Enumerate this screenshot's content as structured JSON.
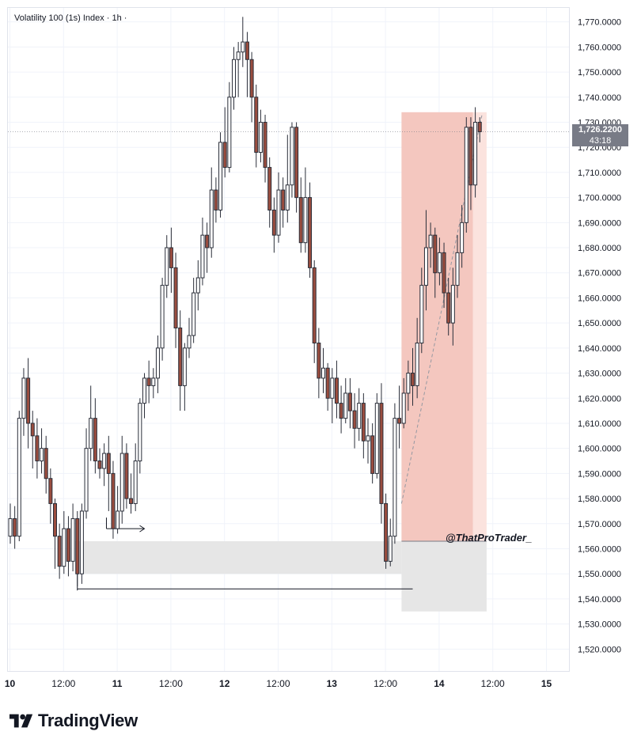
{
  "chart_title": "Volatility 100 (1s) Index · 1h ·",
  "current_price_label": "1,726.2200",
  "countdown_label": "43:18",
  "watermark": "@ThatProTrader_",
  "logo_text": "TradingView",
  "colors": {
    "bull": "#ffffff",
    "bear": "#9a4d3f",
    "wick": "#2a2e39",
    "short_zone": "#f4c7bf",
    "short_zone_light": "#fbe3de",
    "gray_zone": "#e6e6e6",
    "price_tag": "#787b86"
  },
  "chart_data": {
    "type": "candlestick",
    "title": "Volatility 100 (1s) Index · 1h ·",
    "y_ticks": [
      "1,520.0000",
      "1,530.0000",
      "1,540.0000",
      "1,550.0000",
      "1,560.0000",
      "1,570.0000",
      "1,580.0000",
      "1,590.0000",
      "1,600.0000",
      "1,610.0000",
      "1,620.0000",
      "1,630.0000",
      "1,640.0000",
      "1,650.0000",
      "1,660.0000",
      "1,670.0000",
      "1,680.0000",
      "1,690.0000",
      "1,700.0000",
      "1,710.0000",
      "1,720.0000",
      "1,730.0000",
      "1,740.0000",
      "1,750.0000",
      "1,760.0000",
      "1,770.0000"
    ],
    "ylim": [
      1516,
      1774
    ],
    "x_ticks": [
      "10",
      "12:00",
      "11",
      "12:00",
      "12",
      "12:00",
      "13",
      "12:00",
      "14",
      "12:00",
      "15"
    ],
    "xlim": [
      0,
      106
    ],
    "x_tick_positions": [
      0,
      12,
      24,
      36,
      48,
      60,
      72,
      84,
      96,
      108,
      120
    ],
    "grid": true,
    "current_price": 1726.22,
    "candles": [
      [
        1565,
        1572,
        1562,
        1578
      ],
      [
        1572,
        1565,
        1560,
        1577
      ],
      [
        1565,
        1612,
        1563,
        1615
      ],
      [
        1612,
        1628,
        1605,
        1632
      ],
      [
        1628,
        1610,
        1600,
        1636
      ],
      [
        1610,
        1605,
        1592,
        1615
      ],
      [
        1605,
        1595,
        1588,
        1612
      ],
      [
        1595,
        1600,
        1590,
        1608
      ],
      [
        1600,
        1588,
        1582,
        1605
      ],
      [
        1588,
        1578,
        1570,
        1592
      ],
      [
        1578,
        1565,
        1552,
        1580
      ],
      [
        1565,
        1553,
        1548,
        1570
      ],
      [
        1553,
        1568,
        1550,
        1575
      ],
      [
        1568,
        1555,
        1549,
        1573
      ],
      [
        1555,
        1572,
        1551,
        1578
      ],
      [
        1572,
        1550,
        1545,
        1575
      ],
      [
        1550,
        1575,
        1546,
        1578
      ],
      [
        1575,
        1600,
        1572,
        1608
      ],
      [
        1600,
        1612,
        1595,
        1625
      ],
      [
        1612,
        1595,
        1590,
        1620
      ],
      [
        1595,
        1592,
        1588,
        1600
      ],
      [
        1592,
        1598,
        1585,
        1602
      ],
      [
        1598,
        1590,
        1575,
        1605
      ],
      [
        1590,
        1568,
        1564,
        1595
      ],
      [
        1568,
        1575,
        1566,
        1585
      ],
      [
        1575,
        1598,
        1570,
        1605
      ],
      [
        1598,
        1580,
        1576,
        1602
      ],
      [
        1580,
        1578,
        1574,
        1590
      ],
      [
        1578,
        1595,
        1575,
        1602
      ],
      [
        1595,
        1618,
        1590,
        1620
      ],
      [
        1618,
        1628,
        1612,
        1630
      ],
      [
        1628,
        1625,
        1618,
        1635
      ],
      [
        1625,
        1628,
        1620,
        1632
      ],
      [
        1628,
        1640,
        1622,
        1645
      ],
      [
        1640,
        1665,
        1635,
        1668
      ],
      [
        1665,
        1680,
        1660,
        1685
      ],
      [
        1680,
        1672,
        1662,
        1688
      ],
      [
        1672,
        1648,
        1640,
        1678
      ],
      [
        1648,
        1625,
        1615,
        1655
      ],
      [
        1625,
        1640,
        1615,
        1642
      ],
      [
        1640,
        1645,
        1636,
        1652
      ],
      [
        1645,
        1662,
        1642,
        1668
      ],
      [
        1662,
        1668,
        1655,
        1675
      ],
      [
        1668,
        1685,
        1665,
        1692
      ],
      [
        1685,
        1680,
        1670,
        1690
      ],
      [
        1680,
        1703,
        1676,
        1712
      ],
      [
        1703,
        1695,
        1690,
        1708
      ],
      [
        1695,
        1722,
        1692,
        1726
      ],
      [
        1722,
        1712,
        1708,
        1736
      ],
      [
        1712,
        1740,
        1710,
        1746
      ],
      [
        1740,
        1755,
        1735,
        1760
      ],
      [
        1755,
        1758,
        1740,
        1762
      ],
      [
        1758,
        1762,
        1752,
        1772
      ],
      [
        1762,
        1755,
        1740,
        1766
      ],
      [
        1755,
        1740,
        1730,
        1758
      ],
      [
        1740,
        1718,
        1712,
        1745
      ],
      [
        1718,
        1730,
        1714,
        1735
      ],
      [
        1730,
        1712,
        1706,
        1733
      ],
      [
        1712,
        1695,
        1688,
        1716
      ],
      [
        1695,
        1685,
        1678,
        1700
      ],
      [
        1685,
        1703,
        1682,
        1710
      ],
      [
        1703,
        1695,
        1688,
        1708
      ],
      [
        1695,
        1705,
        1690,
        1725
      ],
      [
        1705,
        1728,
        1700,
        1730
      ],
      [
        1728,
        1700,
        1694,
        1730
      ],
      [
        1700,
        1682,
        1678,
        1708
      ],
      [
        1682,
        1700,
        1678,
        1712
      ],
      [
        1700,
        1672,
        1668,
        1706
      ],
      [
        1672,
        1642,
        1634,
        1675
      ],
      [
        1642,
        1628,
        1620,
        1648
      ],
      [
        1628,
        1632,
        1622,
        1640
      ],
      [
        1632,
        1620,
        1615,
        1634
      ],
      [
        1620,
        1628,
        1610,
        1632
      ],
      [
        1628,
        1618,
        1612,
        1635
      ],
      [
        1618,
        1612,
        1606,
        1625
      ],
      [
        1612,
        1622,
        1610,
        1628
      ],
      [
        1622,
        1615,
        1608,
        1628
      ],
      [
        1615,
        1608,
        1600,
        1622
      ],
      [
        1608,
        1618,
        1603,
        1624
      ],
      [
        1618,
        1603,
        1596,
        1622
      ],
      [
        1603,
        1605,
        1594,
        1612
      ],
      [
        1605,
        1590,
        1586,
        1610
      ],
      [
        1590,
        1618,
        1588,
        1622
      ],
      [
        1618,
        1578,
        1570,
        1626
      ],
      [
        1578,
        1555,
        1552,
        1582
      ],
      [
        1555,
        1565,
        1553,
        1572
      ],
      [
        1565,
        1612,
        1562,
        1618
      ],
      [
        1612,
        1610,
        1600,
        1625
      ],
      [
        1610,
        1622,
        1608,
        1628
      ],
      [
        1622,
        1630,
        1615,
        1635
      ],
      [
        1630,
        1625,
        1617,
        1640
      ],
      [
        1625,
        1642,
        1620,
        1652
      ],
      [
        1642,
        1665,
        1638,
        1672
      ],
      [
        1665,
        1680,
        1655,
        1695
      ],
      [
        1680,
        1685,
        1672,
        1690
      ],
      [
        1685,
        1670,
        1660,
        1688
      ],
      [
        1670,
        1678,
        1665,
        1684
      ],
      [
        1678,
        1662,
        1656,
        1682
      ],
      [
        1662,
        1650,
        1645,
        1668
      ],
      [
        1650,
        1665,
        1641,
        1672
      ],
      [
        1665,
        1678,
        1660,
        1685
      ],
      [
        1678,
        1690,
        1672,
        1697
      ],
      [
        1690,
        1728,
        1686,
        1732
      ],
      [
        1728,
        1705,
        1695,
        1732
      ],
      [
        1705,
        1730,
        1700,
        1736
      ],
      [
        1730,
        1726.22,
        1722,
        1732
      ]
    ],
    "zones": {
      "short_position": {
        "from_x": 87.5,
        "to_x": 106,
        "entry": 1563,
        "stop": 1734
      },
      "target_zone": {
        "from_x": 87.5,
        "to_x": 106,
        "top": 1563,
        "bottom": 1535
      },
      "demand_zone": {
        "from_x": 14.5,
        "to_x": 87.5,
        "top": 1563,
        "bottom": 1550
      }
    },
    "lines": {
      "horizontal_support": {
        "price": 1544,
        "from_x": 15,
        "to_x": 90
      },
      "arrow": {
        "price": 1568,
        "from_x": 21.5,
        "to_x": 30
      },
      "dashed_trend": {
        "from_x": 87.5,
        "from_price": 1578,
        "to_x": 105.5,
        "to_price": 1733
      }
    }
  }
}
